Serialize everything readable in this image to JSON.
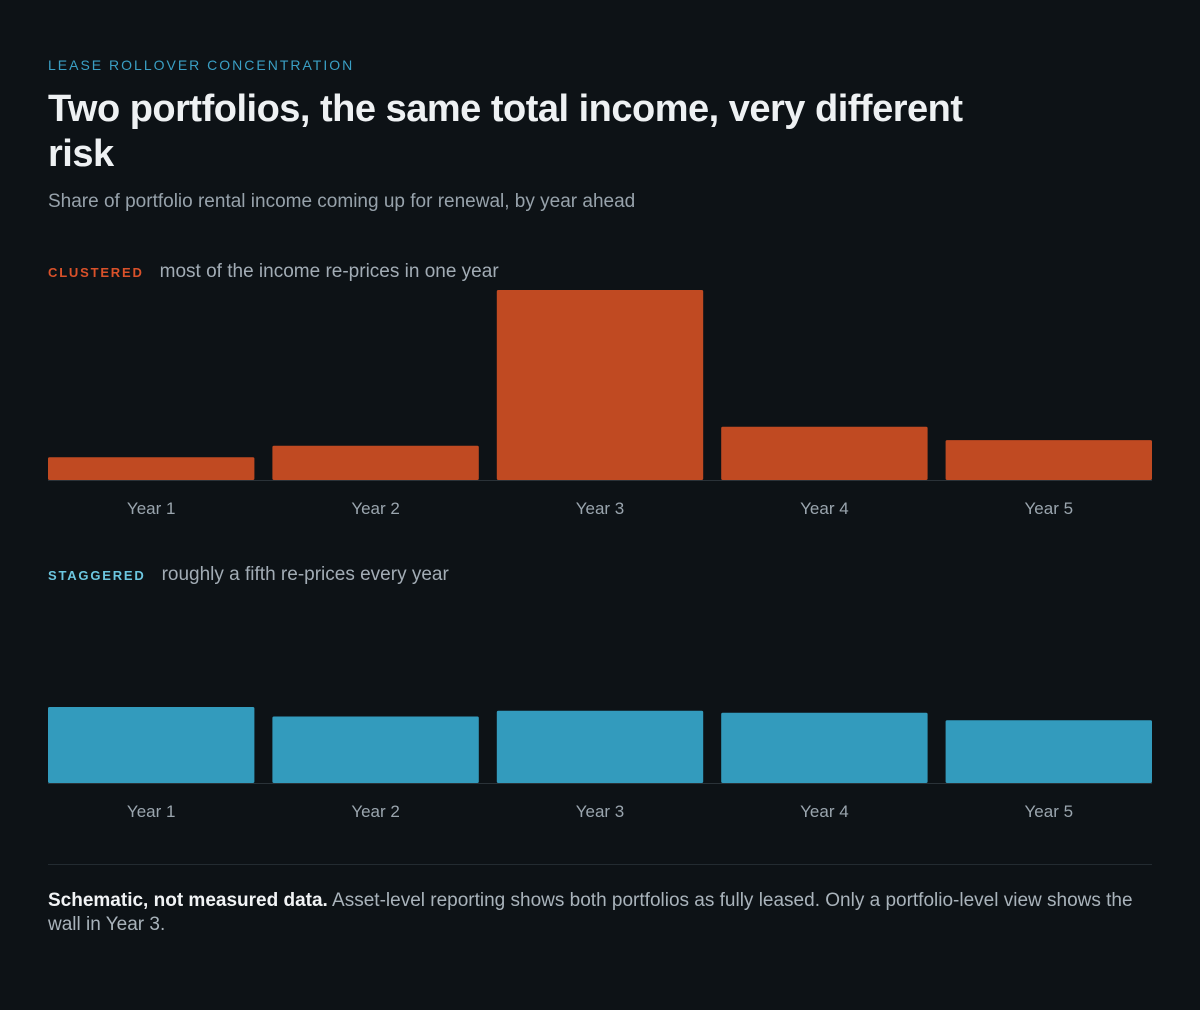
{
  "header": {
    "eyebrow": "LEASE ROLLOVER CONCENTRATION",
    "title": "Two portfolios, the same total income, very different risk",
    "subtitle": "Share of portfolio rental income coming up for renewal, by year ahead"
  },
  "footer": {
    "note_bold": "Schematic, not measured data.",
    "note_text": " Asset-level reporting shows both portfolios as fully leased. Only a portfolio-level view shows the wall in Year 3."
  },
  "chart_data": [
    {
      "type": "bar",
      "tag": "CLUSTERED",
      "description": "most of the income re-prices in one year",
      "categories": [
        "Year 1",
        "Year 2",
        "Year 3",
        "Year 4",
        "Year 5"
      ],
      "values": [
        6,
        9,
        50,
        14,
        10.5
      ],
      "ylim": [
        0,
        50
      ],
      "grid": false,
      "color": "#c04a22"
    },
    {
      "type": "bar",
      "tag": "STAGGERED",
      "description": "roughly a fifth re-prices every year",
      "categories": [
        "Year 1",
        "Year 2",
        "Year 3",
        "Year 4",
        "Year 5"
      ],
      "values": [
        20,
        17.5,
        19,
        18.5,
        16.5
      ],
      "ylim": [
        0,
        50
      ],
      "grid": false,
      "color": "#339bbd"
    }
  ]
}
